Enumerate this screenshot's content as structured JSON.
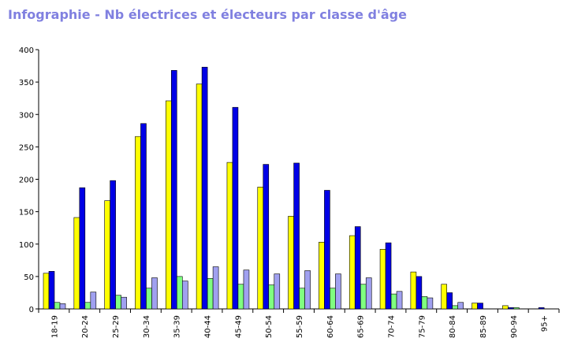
{
  "chart_data": {
    "type": "bar",
    "title": "Infographie - Nb électrices et électeurs par classe d'âge",
    "xlabel": "",
    "ylabel": "",
    "ylim": [
      0,
      400
    ],
    "yticks": [
      "0",
      "50",
      "100",
      "150",
      "200",
      "250",
      "300",
      "350",
      "400"
    ],
    "grid": false,
    "legend": "none",
    "categories": [
      "18-19",
      "20-24",
      "25-29",
      "30-34",
      "35-39",
      "40-44",
      "45-49",
      "50-54",
      "55-59",
      "60-64",
      "65-69",
      "70-74",
      "75-79",
      "80-84",
      "85-89",
      "90-94",
      "95+"
    ],
    "series": [
      {
        "color": "#ffff00",
        "values": [
          55,
          141,
          167,
          266,
          321,
          347,
          226,
          188,
          143,
          103,
          113,
          92,
          57,
          38,
          9,
          5,
          0
        ]
      },
      {
        "color": "#0000e6",
        "values": [
          58,
          187,
          198,
          286,
          368,
          373,
          311,
          223,
          225,
          183,
          127,
          102,
          50,
          25,
          9,
          2,
          2
        ]
      },
      {
        "color": "#80ff80",
        "values": [
          10,
          10,
          21,
          32,
          50,
          47,
          38,
          37,
          32,
          32,
          38,
          23,
          19,
          5,
          0,
          2,
          0
        ]
      },
      {
        "color": "#a0a0f0",
        "values": [
          8,
          26,
          18,
          48,
          43,
          65,
          60,
          54,
          59,
          54,
          48,
          27,
          17,
          10,
          0,
          0,
          0
        ]
      }
    ],
    "colors": {
      "title": "#8080e0",
      "axis": "#000000"
    }
  }
}
